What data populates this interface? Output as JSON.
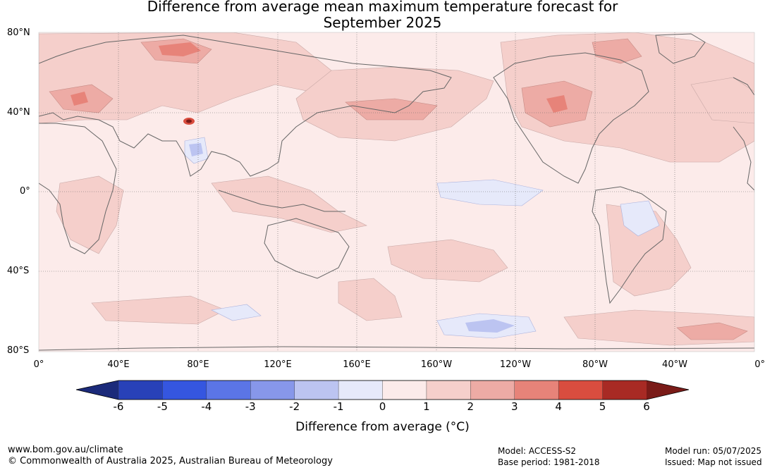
{
  "title": {
    "line1": "Difference from average mean maximum temperature forecast for",
    "line2": "September 2025"
  },
  "map": {
    "lat_labels": [
      "80°N",
      "40°N",
      "0°",
      "40°S",
      "80°S"
    ],
    "lon_labels": [
      "0°",
      "40°E",
      "80°E",
      "120°E",
      "160°E",
      "160°W",
      "120°W",
      "80°W",
      "40°W",
      "0°"
    ]
  },
  "colorbar": {
    "title": "Difference from average (°C)",
    "ticks": [
      "-6",
      "-5",
      "-4",
      "-3",
      "-2",
      "-1",
      "0",
      "1",
      "2",
      "3",
      "4",
      "5",
      "6"
    ],
    "colors": [
      "#1b2a7a",
      "#2841b8",
      "#3556e0",
      "#5b75e6",
      "#8797ea",
      "#bcc4f1",
      "#e6e9fa",
      "#fcebea",
      "#f5cfcb",
      "#edaba5",
      "#e78379",
      "#d94d3f",
      "#a82a24",
      "#7a1b18"
    ]
  },
  "footer": {
    "website": "www.bom.gov.au/climate",
    "copyright": "© Commonwealth of Australia 2025, Australian Bureau of Meteorology",
    "model": "Model: ACCESS-S2",
    "base_period": "Base period: 1981-2018",
    "model_run": "Model run: 05/07/2025",
    "issued": "Issued: Map not issued"
  }
}
